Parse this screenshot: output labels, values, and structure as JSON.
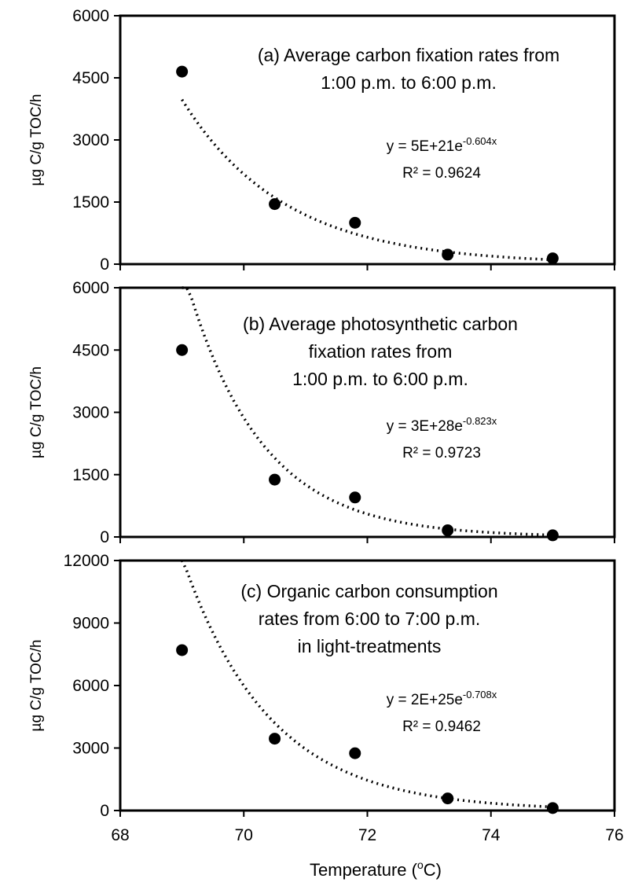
{
  "figure": {
    "xlabel": "Temperature (",
    "xlabel_sup": "o",
    "xlabel_end": "C)"
  },
  "chart_data": [
    {
      "type": "scatter",
      "panel": "a",
      "title_lines": [
        "(a) Average carbon fixation rates from",
        "1:00 p.m. to 6:00 p.m."
      ],
      "ylabel": "µg C/g TOC/h",
      "xlim": [
        68,
        76
      ],
      "ylim": [
        0,
        6000
      ],
      "yticks": [
        "0",
        "1500",
        "3000",
        "4500",
        "6000"
      ],
      "xticks": [],
      "x": [
        69,
        70.5,
        71.8,
        73.3,
        75
      ],
      "y": [
        4650,
        1450,
        1000,
        230,
        140
      ],
      "trendline": {
        "type": "exponential",
        "a": 5e+21,
        "b": -0.604
      },
      "equation_base": "y = 5E+21e",
      "equation_exp": "-0.604x",
      "r2": "R² = 0.9624",
      "grid": false,
      "legend": "none"
    },
    {
      "type": "scatter",
      "panel": "b",
      "title_lines": [
        "(b) Average photosynthetic carbon",
        "fixation rates from",
        "1:00 p.m. to 6:00 p.m."
      ],
      "ylabel": "µg C/g TOC/h",
      "xlim": [
        68,
        76
      ],
      "ylim": [
        0,
        6000
      ],
      "yticks": [
        "0",
        "1500",
        "3000",
        "4500",
        "6000"
      ],
      "xticks": [],
      "x": [
        69,
        70.5,
        71.8,
        73.3,
        75
      ],
      "y": [
        4500,
        1380,
        950,
        160,
        40
      ],
      "trendline": {
        "type": "exponential",
        "a": 3e+28,
        "b": -0.823
      },
      "equation_base": "y = 3E+28e",
      "equation_exp": "-0.823x",
      "r2": "R² = 0.9723",
      "grid": false,
      "legend": "none"
    },
    {
      "type": "scatter",
      "panel": "c",
      "title_lines": [
        "(c) Organic carbon consumption",
        "rates from 6:00 to 7:00 p.m.",
        "in light-treatments"
      ],
      "ylabel": "µg C/g TOC/h",
      "xlim": [
        68,
        76
      ],
      "ylim": [
        0,
        12000
      ],
      "yticks": [
        "0",
        "3000",
        "6000",
        "9000",
        "12000"
      ],
      "xticks": [
        "68",
        "70",
        "72",
        "74",
        "76"
      ],
      "x": [
        69,
        70.5,
        71.8,
        73.3,
        75
      ],
      "y": [
        7700,
        3450,
        2750,
        580,
        120
      ],
      "trendline": {
        "type": "exponential",
        "a": 2e+25,
        "b": -0.708
      },
      "equation_base": "y = 2E+25e",
      "equation_exp": "-0.708x",
      "r2": "R² = 0.9462",
      "grid": false,
      "legend": "none"
    }
  ]
}
